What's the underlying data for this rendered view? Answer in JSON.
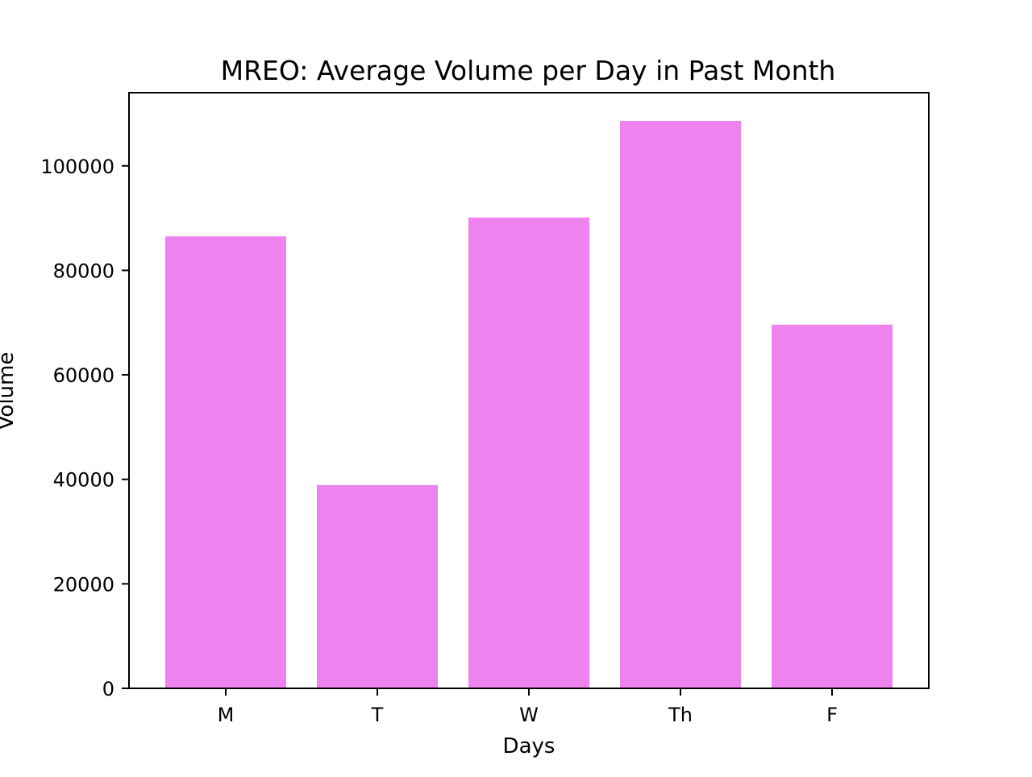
{
  "chart_data": {
    "type": "bar",
    "title": "MREO: Average Volume per Day in Past Month",
    "xlabel": "Days",
    "ylabel": "Volume",
    "categories": [
      "M",
      "T",
      "W",
      "Th",
      "F"
    ],
    "values": [
      86500,
      38900,
      90100,
      108600,
      69600
    ],
    "ylim": [
      0,
      114000
    ],
    "yticks": [
      0,
      20000,
      40000,
      60000,
      80000,
      100000
    ],
    "ytick_labels": [
      "0",
      "20000",
      "40000",
      "60000",
      "80000",
      "100000"
    ],
    "bar_color": "#ee82ee",
    "grid": false,
    "legend": "none"
  }
}
